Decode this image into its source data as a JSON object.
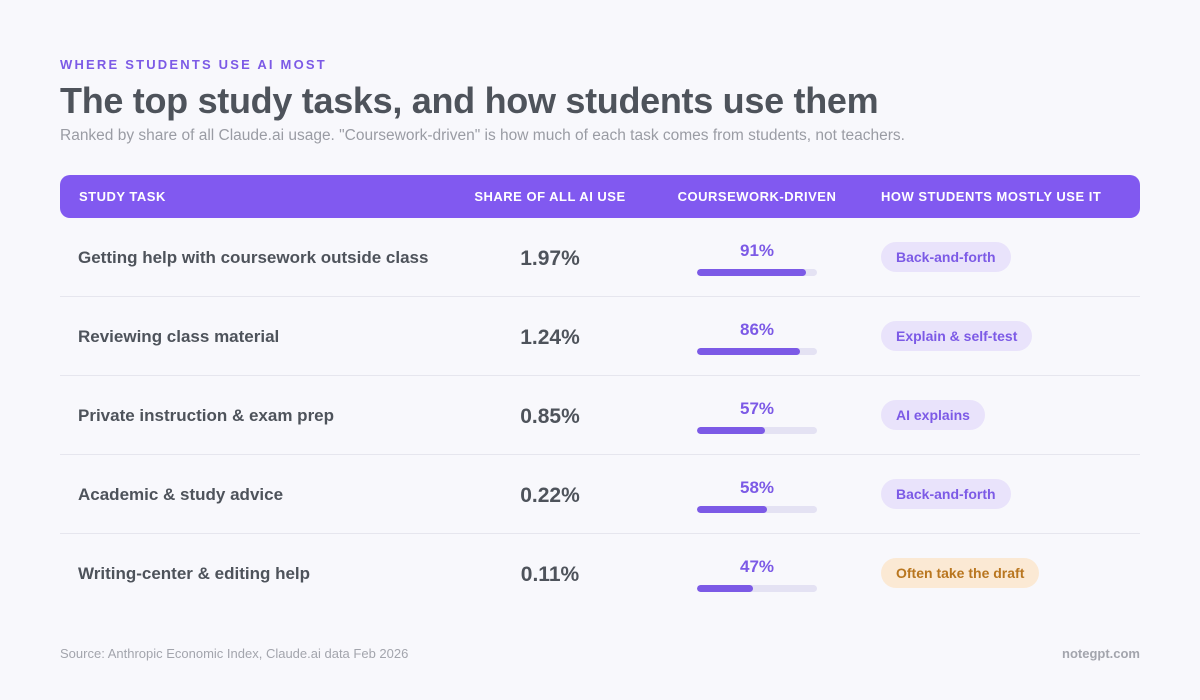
{
  "header": {
    "eyebrow": "WHERE STUDENTS USE AI MOST",
    "title": "The top study tasks, and how students use them",
    "subtitle": "Ranked by share of all Claude.ai usage. \"Coursework-driven\" is how much of each task comes from students, not teachers."
  },
  "colors": {
    "accent": "#8159f0",
    "bar_fill": "#7c5ae6",
    "bar_track": "#e4e2f3",
    "pill_purple_bg": "#e9e3fb",
    "pill_amber_bg": "#fbe9d4",
    "pill_amber_text": "#b9761f"
  },
  "chart_data": {
    "type": "table",
    "columns": [
      "STUDY TASK",
      "SHARE OF ALL AI USE",
      "COURSEWORK-DRIVEN",
      "HOW STUDENTS MOSTLY USE IT"
    ],
    "rows": [
      {
        "task": "Getting help with coursework outside class",
        "share": "1.97%",
        "coursework": "91%",
        "coursework_value": 91,
        "usage": "Back-and-forth",
        "usage_style": "purple"
      },
      {
        "task": "Reviewing class material",
        "share": "1.24%",
        "coursework": "86%",
        "coursework_value": 86,
        "usage": "Explain & self-test",
        "usage_style": "purple"
      },
      {
        "task": "Private instruction & exam prep",
        "share": "0.85%",
        "coursework": "57%",
        "coursework_value": 57,
        "usage": "AI explains",
        "usage_style": "purple"
      },
      {
        "task": "Academic & study advice",
        "share": "0.22%",
        "coursework": "58%",
        "coursework_value": 58,
        "usage": "Back-and-forth",
        "usage_style": "purple"
      },
      {
        "task": "Writing-center & editing help",
        "share": "0.11%",
        "coursework": "47%",
        "coursework_value": 47,
        "usage": "Often take the draft",
        "usage_style": "amber"
      }
    ]
  },
  "footer": {
    "source": "Source: Anthropic Economic Index, Claude.ai data Feb 2026",
    "brand": "notegpt.com"
  }
}
